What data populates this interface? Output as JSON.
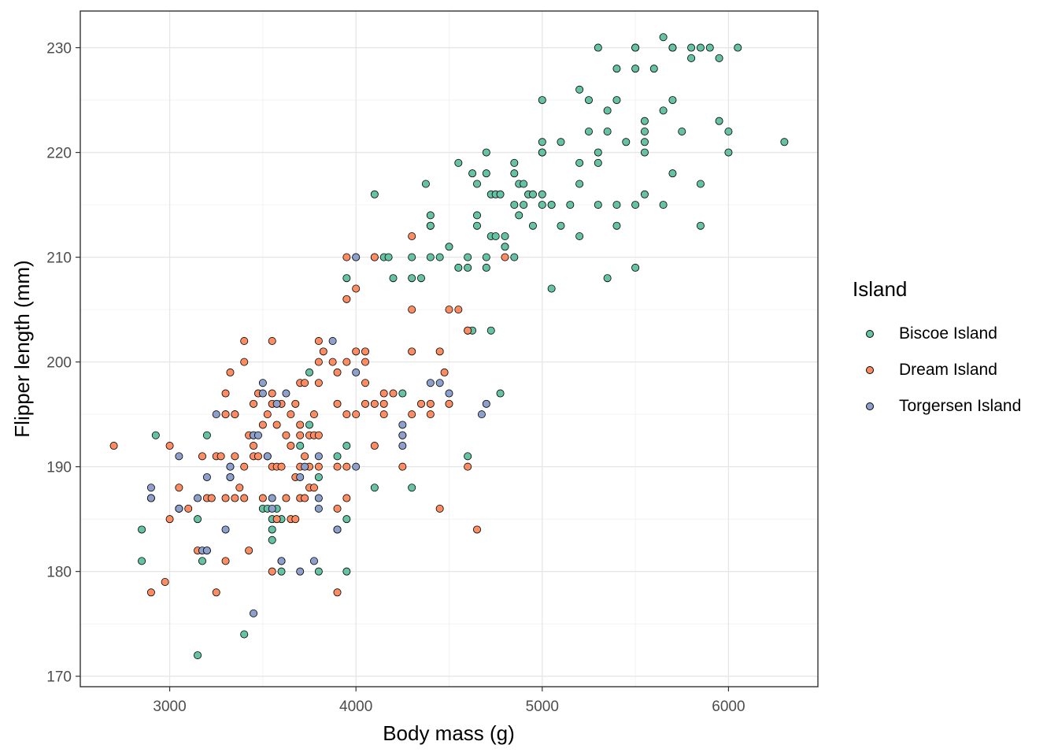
{
  "chart_data": {
    "type": "scatter",
    "xlabel": "Body mass (g)",
    "ylabel": "Flipper length (mm)",
    "xlim": [
      2520,
      6480
    ],
    "ylim": [
      169,
      233.5
    ],
    "x_ticks": [
      3000,
      4000,
      5000,
      6000
    ],
    "y_ticks": [
      170,
      180,
      190,
      200,
      210,
      220,
      230
    ],
    "grid": true,
    "legend_title": "Island",
    "legend_position": "right",
    "series": [
      {
        "name": "Biscoe Island",
        "color": "#66C2A5",
        "x": [
          2850,
          2850,
          2925,
          3150,
          3150,
          3175,
          3200,
          3050,
          3350,
          3400,
          3500,
          3550,
          3550,
          3600,
          3600,
          3700,
          3750,
          3800,
          3800,
          3900,
          3900,
          3950,
          3950,
          3950,
          4100,
          4100,
          4250,
          4300,
          4600,
          4600,
          4625,
          4725,
          4775,
          3950,
          3750,
          3525,
          3550,
          3575,
          4100,
          4150,
          4175,
          4200,
          4300,
          4300,
          4350,
          4375,
          4400,
          4400,
          4400,
          4450,
          4500,
          4550,
          4600,
          4600,
          4625,
          4650,
          4650,
          4700,
          4700,
          4700,
          4700,
          4725,
          4725,
          4750,
          4750,
          4775,
          4800,
          4850,
          4850,
          4850,
          4875,
          4875,
          4900,
          4900,
          4925,
          4950,
          4950,
          5000,
          5000,
          5000,
          5000,
          5000,
          5000,
          5050,
          5050,
          5100,
          5100,
          5150,
          5200,
          5200,
          5200,
          5200,
          5250,
          5250,
          5300,
          5300,
          5300,
          5350,
          5350,
          5400,
          5400,
          5400,
          5400,
          5450,
          5500,
          5500,
          5500,
          5500,
          5550,
          5550,
          5550,
          5550,
          5550,
          5600,
          5650,
          5650,
          5650,
          5700,
          5700,
          5700,
          5750,
          5800,
          5800,
          5850,
          5850,
          5850,
          5950,
          5950,
          6000,
          6000,
          6050,
          6300,
          5050,
          5350,
          5500,
          4400,
          4850,
          4650,
          4800,
          4550,
          5300,
          5700,
          5900
        ],
        "y": [
          184,
          181,
          193,
          172,
          185,
          181,
          193,
          186,
          195,
          174,
          186,
          183,
          184,
          180,
          185,
          192,
          194,
          189,
          180,
          191,
          184,
          185,
          180,
          192,
          188,
          216,
          197,
          188,
          191,
          203,
          203,
          203,
          197,
          208,
          199,
          186,
          185,
          186,
          210,
          210,
          210,
          208,
          208,
          210,
          208,
          217,
          213,
          214,
          210,
          210,
          211,
          209,
          210,
          209,
          218,
          213,
          214,
          220,
          218,
          210,
          209,
          212,
          216,
          212,
          216,
          216,
          211,
          210,
          219,
          215,
          214,
          217,
          217,
          215,
          216,
          213,
          216,
          225,
          221,
          220,
          216,
          215,
          220,
          215,
          215,
          221,
          213,
          215,
          226,
          219,
          217,
          212,
          225,
          222,
          215,
          219,
          220,
          224,
          222,
          225,
          228,
          213,
          215,
          221,
          228,
          230,
          215,
          230,
          222,
          223,
          220,
          221,
          216,
          228,
          231,
          224,
          215,
          225,
          218,
          230,
          222,
          230,
          229,
          230,
          217,
          213,
          229,
          223,
          220,
          222,
          230,
          221,
          207,
          208,
          209,
          213,
          218,
          217,
          212,
          219,
          230,
          230,
          230
        ]
      },
      {
        "name": "Dream Island",
        "color": "#FC8D62",
        "x": [
          2700,
          2900,
          2900,
          2975,
          3000,
          3000,
          3050,
          3050,
          3100,
          3150,
          3175,
          3200,
          3225,
          3250,
          3250,
          3275,
          3300,
          3300,
          3300,
          3300,
          3300,
          3325,
          3325,
          3350,
          3350,
          3350,
          3375,
          3400,
          3400,
          3400,
          3400,
          3425,
          3425,
          3450,
          3450,
          3450,
          3475,
          3475,
          3500,
          3500,
          3525,
          3525,
          3550,
          3550,
          3550,
          3550,
          3575,
          3575,
          3600,
          3600,
          3625,
          3650,
          3650,
          3650,
          3675,
          3675,
          3700,
          3700,
          3700,
          3700,
          3725,
          3725,
          3750,
          3750,
          3750,
          3775,
          3775,
          3800,
          3800,
          3800,
          3800,
          3800,
          3825,
          3900,
          3900,
          3900,
          3900,
          3900,
          3950,
          3950,
          3950,
          3950,
          3950,
          4000,
          4000,
          4000,
          4000,
          4050,
          4050,
          4050,
          4100,
          4100,
          4150,
          4150,
          4150,
          4200,
          4250,
          4250,
          4300,
          4300,
          4300,
          4300,
          4350,
          4400,
          4400,
          4450,
          4450,
          4475,
          4500,
          4500,
          4550,
          4600,
          4600,
          4650,
          4800,
          3575,
          3625,
          3675,
          3700,
          3725,
          3775,
          3550,
          3950,
          4050,
          4100,
          3600,
          3875,
          3450
        ],
        "y": [
          192,
          178,
          187,
          179,
          185,
          192,
          186,
          188,
          186,
          182,
          191,
          187,
          187,
          178,
          191,
          191,
          187,
          181,
          195,
          197,
          195,
          199,
          190,
          191,
          187,
          195,
          188,
          202,
          190,
          200,
          187,
          182,
          193,
          191,
          193,
          196,
          191,
          197,
          187,
          194,
          191,
          195,
          202,
          196,
          190,
          180,
          194,
          190,
          181,
          190,
          187,
          185,
          195,
          192,
          196,
          185,
          194,
          198,
          190,
          187,
          198,
          187,
          188,
          193,
          190,
          193,
          188,
          193,
          190,
          198,
          200,
          202,
          201,
          186,
          190,
          196,
          199,
          178,
          187,
          190,
          195,
          206,
          200,
          201,
          195,
          207,
          210,
          196,
          201,
          198,
          196,
          210,
          197,
          196,
          195,
          197,
          193,
          190,
          212,
          205,
          201,
          195,
          196,
          195,
          196,
          186,
          201,
          199,
          196,
          205,
          205,
          190,
          203,
          184,
          210,
          185,
          193,
          189,
          193,
          191,
          195,
          197,
          210,
          200,
          192,
          196,
          200,
          192
        ]
      },
      {
        "name": "Torgersen Island",
        "color": "#8DA0CB",
        "x": [
          2900,
          2900,
          3050,
          3050,
          3150,
          3175,
          3200,
          3200,
          3250,
          3300,
          3325,
          3325,
          3450,
          3450,
          3475,
          3500,
          3500,
          3525,
          3550,
          3550,
          3575,
          3600,
          3625,
          3700,
          3700,
          3725,
          3775,
          3800,
          3800,
          3800,
          3875,
          3900,
          4000,
          4000,
          4000,
          4250,
          4250,
          4250,
          4400,
          4450,
          4500,
          4675,
          4700,
          3325,
          3200
        ],
        "y": [
          188,
          187,
          191,
          186,
          187,
          182,
          189,
          182,
          195,
          184,
          189,
          190,
          176,
          193,
          193,
          198,
          197,
          191,
          187,
          186,
          196,
          181,
          197,
          180,
          189,
          190,
          181,
          191,
          187,
          186,
          202,
          184,
          199,
          210,
          190,
          193,
          192,
          194,
          198,
          198,
          197,
          195,
          196,
          189,
          182
        ]
      }
    ]
  }
}
